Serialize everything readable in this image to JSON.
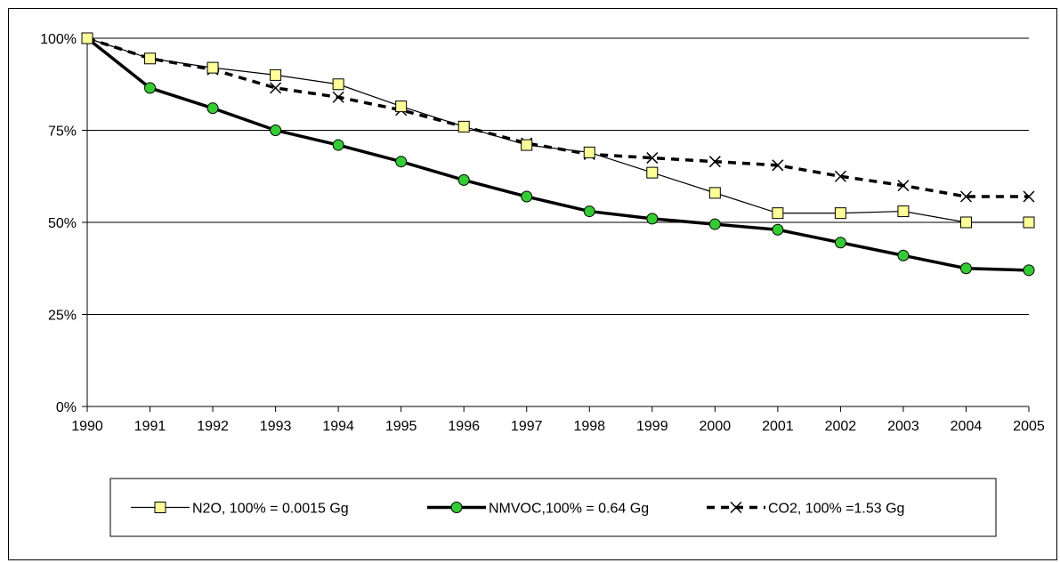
{
  "chart_data": {
    "type": "line",
    "title": "",
    "xlabel": "",
    "ylabel": "",
    "categories": [
      "1990",
      "1991",
      "1992",
      "1993",
      "1994",
      "1995",
      "1996",
      "1997",
      "1998",
      "1999",
      "2000",
      "2001",
      "2002",
      "2003",
      "2004",
      "2005"
    ],
    "ylim": [
      0,
      100
    ],
    "y_ticks": [
      0,
      25,
      50,
      75,
      100
    ],
    "y_tick_labels": [
      "0%",
      "25%",
      "50%",
      "75%",
      "100%"
    ],
    "grid": "horizontal",
    "legend_position": "bottom",
    "series": [
      {
        "name": "N2O, 100% = 0.0015 Gg",
        "values": [
          100,
          94.5,
          92,
          90,
          87.5,
          81.5,
          76,
          71,
          69,
          63.5,
          58,
          52.5,
          52.5,
          53,
          50,
          50
        ],
        "color": "#000000",
        "marker": "square",
        "marker_fill": "#FFFF99",
        "line_style": "solid-thin"
      },
      {
        "name": "NMVOC,100% = 0.64 Gg",
        "values": [
          100,
          86.5,
          81,
          75,
          71,
          66.5,
          61.5,
          57,
          53,
          51,
          49.5,
          48,
          44.5,
          41,
          37.5,
          37
        ],
        "color": "#000000",
        "marker": "circle",
        "marker_fill": "#33CC33",
        "line_style": "solid-thick"
      },
      {
        "name": "CO2, 100% =1.53 Gg",
        "values": [
          100,
          94.5,
          91.5,
          86.5,
          84,
          80.5,
          76,
          71.5,
          68.5,
          67.5,
          66.5,
          65.5,
          62.5,
          60,
          57,
          57
        ],
        "color": "#000000",
        "marker": "x",
        "line_style": "dashed-thick"
      }
    ]
  }
}
